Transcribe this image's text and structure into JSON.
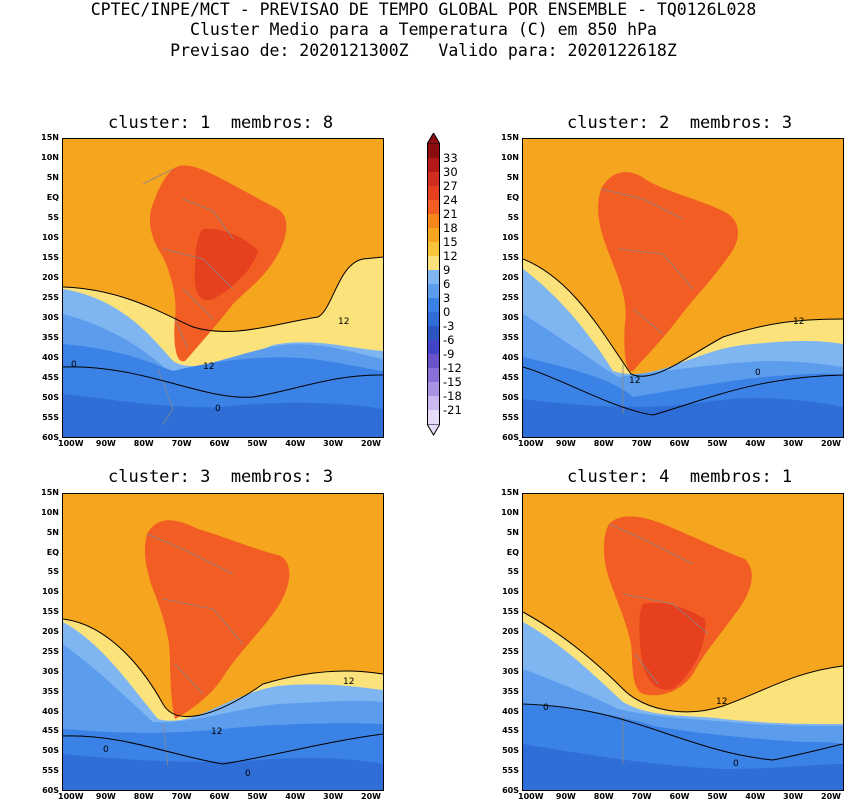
{
  "header": {
    "line1": "CPTEC/INPE/MCT - PREVISAO DE TEMPO GLOBAL POR ENSEMBLE - TQ0126L028",
    "line2": "Cluster Medio para a Temperatura (C) em 850 hPa",
    "line3": "Previsao de: 2020121300Z   Valido para: 2020122618Z"
  },
  "panels": [
    {
      "title": "cluster: 1  membros: 8",
      "contour_labels": [
        "12",
        "12",
        "0",
        "0"
      ]
    },
    {
      "title": "cluster: 2  membros: 3",
      "contour_labels": [
        "12",
        "12",
        "0"
      ]
    },
    {
      "title": "cluster: 3  membros: 3",
      "contour_labels": [
        "12",
        "12",
        "0",
        "0"
      ]
    },
    {
      "title": "cluster: 4  membros: 1",
      "contour_labels": [
        "12",
        "0",
        "0"
      ]
    }
  ],
  "axes": {
    "lat_labels": [
      "15N",
      "10N",
      "5N",
      "EQ",
      "5S",
      "10S",
      "15S",
      "20S",
      "25S",
      "30S",
      "35S",
      "40S",
      "45S",
      "50S",
      "55S",
      "60S"
    ],
    "lon_labels": [
      "100W",
      "90W",
      "80W",
      "70W",
      "60W",
      "50W",
      "40W",
      "30W",
      "20W"
    ]
  },
  "colorbar": {
    "labels": [
      "33",
      "30",
      "27",
      "24",
      "21",
      "18",
      "15",
      "12",
      "9",
      "6",
      "3",
      "0",
      "-3",
      "-6",
      "-9",
      "-12",
      "-15",
      "-18",
      "-21"
    ],
    "colors": [
      "#8c0d10",
      "#b31a17",
      "#cf2d1f",
      "#e6401f",
      "#f25d24",
      "#f6861c",
      "#f6a51e",
      "#f8c43c",
      "#fbe27a",
      "#7fb6f2",
      "#5c9ced",
      "#3b82e6",
      "#2e6ed6",
      "#2d55c2",
      "#4343c8",
      "#6a52cc",
      "#8a6fd8",
      "#a991e4",
      "#cbb8f0",
      "#e6dcfa"
    ]
  }
}
